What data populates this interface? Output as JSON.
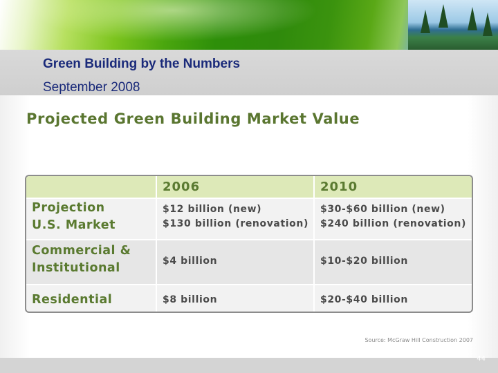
{
  "header": {
    "title": "Green Building by the Numbers",
    "date": "September 2008"
  },
  "main": {
    "heading": "Projected Green Building Market Value",
    "table": {
      "columns": [
        "",
        "2006",
        "2010"
      ],
      "rows": [
        {
          "label_lines": [
            "Projection",
            "U.S. Market"
          ],
          "y2006_lines": [
            "$12 billion (new)",
            "$130 billion (renovation)"
          ],
          "y2010_lines": [
            "$30-$60 billion (new)",
            "$240 billion (renovation)"
          ]
        },
        {
          "label_lines": [
            "Commercial &",
            "Institutional"
          ],
          "y2006_lines": [
            "$4 billion"
          ],
          "y2010_lines": [
            "$10-$20 billion"
          ]
        },
        {
          "label_lines": [
            "Residential"
          ],
          "y2006_lines": [
            "$8 billion"
          ],
          "y2010_lines": [
            "$20-$40 billion"
          ]
        }
      ]
    },
    "source": "Source: McGraw Hill Construction 2007"
  },
  "footer": {
    "slide_number": "44"
  }
}
